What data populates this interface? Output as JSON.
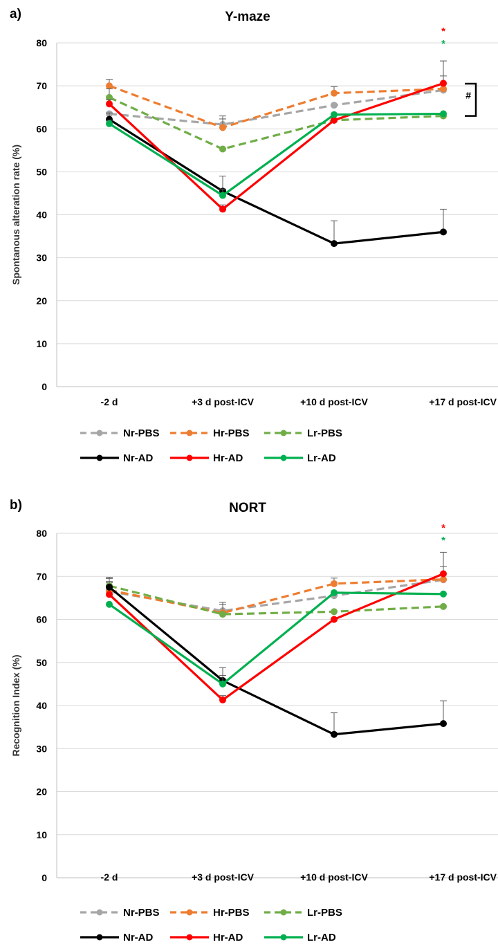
{
  "colors": {
    "Nr-PBS": "#a6a6a6",
    "Hr-PBS": "#ed7d31",
    "Lr-PBS": "#70ad47",
    "Nr-AD": "#000000",
    "Hr-AD": "#ff0000",
    "Lr-AD": "#00b050",
    "grid": "#d9d9d9"
  },
  "chart_data": [
    {
      "type": "line",
      "panel_label": "a)",
      "title": "Y-maze",
      "ylabel": "Spontanous alteration rate (%)",
      "xlabel": "",
      "ylim": [
        0,
        80
      ],
      "yticks": [
        "0",
        "10",
        "20",
        "30",
        "40",
        "50",
        "60",
        "70",
        "80"
      ],
      "grid": true,
      "legend_position": "bottom",
      "categories": [
        "-2 d",
        "+3 d post-ICV",
        "+10 d post-ICV",
        "+17 d post-ICV"
      ],
      "series": [
        {
          "name": "Nr-PBS",
          "style": "dashed",
          "values": [
            63.5,
            61,
            65.5,
            69
          ],
          "errors": [
            0,
            2,
            0,
            0
          ]
        },
        {
          "name": "Hr-PBS",
          "style": "dashed",
          "values": [
            70,
            60.3,
            68.3,
            69.3
          ],
          "errors": [
            1.5,
            2,
            1.5,
            3
          ]
        },
        {
          "name": "Lr-PBS",
          "style": "dashed",
          "values": [
            67.3,
            55.3,
            62,
            63
          ],
          "errors": [
            2,
            0,
            0,
            0
          ]
        },
        {
          "name": "Nr-AD",
          "style": "solid",
          "values": [
            62.2,
            45.5,
            33.3,
            36
          ],
          "errors": [
            1.5,
            3.5,
            5.3,
            5.3
          ]
        },
        {
          "name": "Hr-AD",
          "style": "solid",
          "values": [
            65.8,
            41.3,
            62,
            70.6
          ],
          "errors": [
            1,
            1,
            0,
            5.2
          ]
        },
        {
          "name": "Lr-AD",
          "style": "solid",
          "values": [
            61.2,
            44.5,
            63.3,
            63.5
          ],
          "errors": [
            0.8,
            1.5,
            0,
            0
          ]
        }
      ],
      "annotations": {
        "stars": [
          {
            "text": "*",
            "color": "#ff0000"
          },
          {
            "text": "*",
            "color": "#00b050"
          }
        ],
        "hash": "#"
      }
    },
    {
      "type": "line",
      "panel_label": "b)",
      "title": "NORT",
      "ylabel": "Recognition Index (%)",
      "xlabel": "",
      "ylim": [
        0,
        80
      ],
      "yticks": [
        "0",
        "10",
        "20",
        "30",
        "40",
        "50",
        "60",
        "70",
        "80"
      ],
      "grid": true,
      "legend_position": "bottom",
      "categories": [
        "-2 d",
        "+3 d post-ICV",
        "+10 d post-ICV",
        "+17 d post-ICV"
      ],
      "series": [
        {
          "name": "Nr-PBS",
          "style": "dashed",
          "values": [
            66.5,
            62,
            65.5,
            69.2
          ],
          "errors": [
            2,
            2,
            0,
            0
          ]
        },
        {
          "name": "Hr-PBS",
          "style": "dashed",
          "values": [
            66.8,
            61.5,
            68.3,
            69.3
          ],
          "errors": [
            2,
            2,
            1.3,
            3
          ]
        },
        {
          "name": "Lr-PBS",
          "style": "dashed",
          "values": [
            67.8,
            61.2,
            61.8,
            63
          ],
          "errors": [
            2,
            0,
            0,
            0
          ]
        },
        {
          "name": "Nr-AD",
          "style": "solid",
          "values": [
            67.5,
            45.8,
            33.3,
            35.8
          ],
          "errors": [
            2,
            3,
            5,
            5.3
          ]
        },
        {
          "name": "Hr-AD",
          "style": "solid",
          "values": [
            65.8,
            41.3,
            60,
            70.6
          ],
          "errors": [
            0,
            1,
            0,
            5
          ]
        },
        {
          "name": "Lr-AD",
          "style": "solid",
          "values": [
            63.5,
            45,
            66.2,
            65.9
          ],
          "errors": [
            0,
            2,
            0,
            0
          ]
        }
      ],
      "annotations": {
        "stars": [
          {
            "text": "*",
            "color": "#ff0000"
          },
          {
            "text": "*",
            "color": "#00b050"
          }
        ],
        "hash": ""
      }
    }
  ]
}
